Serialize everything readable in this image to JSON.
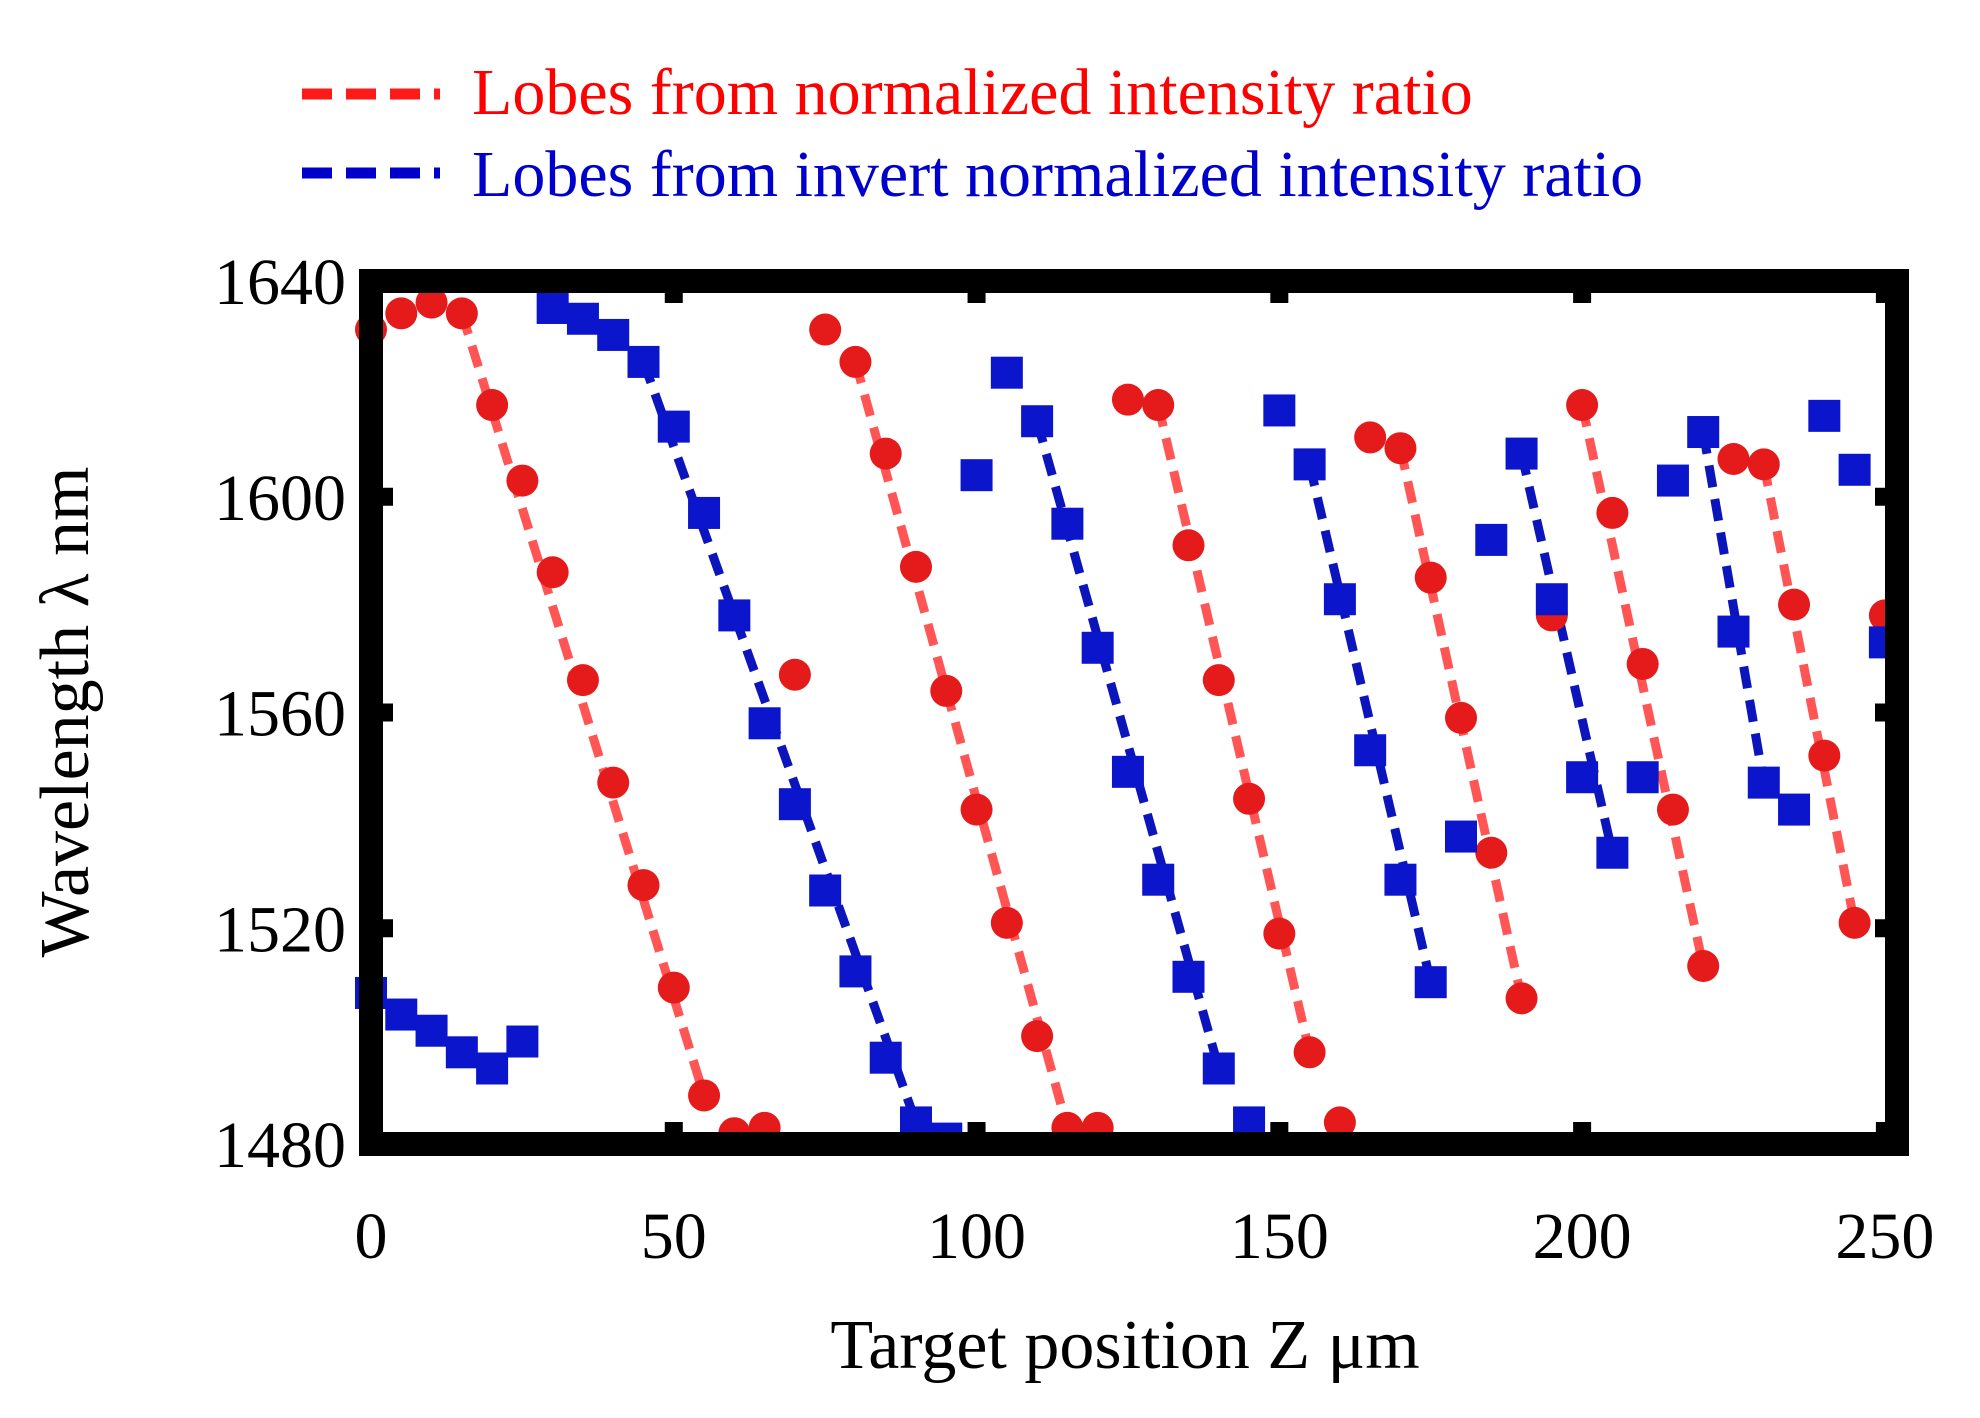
{
  "chart_data": {
    "type": "scatter",
    "xlabel": "Target position Z μm",
    "ylabel": "Wavelength λ nm",
    "xlim": [
      0,
      252
    ],
    "ylim": [
      1480,
      1640
    ],
    "xticks": [
      "0",
      "50",
      "100",
      "150",
      "200",
      "250"
    ],
    "yticks": [
      "1480",
      "1520",
      "1560",
      "1600",
      "1640"
    ],
    "legend": {
      "placement": "top",
      "entries": [
        {
          "label": "Lobes from normalized intensity ratio",
          "color": "#ff0000"
        },
        {
          "label": "Lobes from invert normalized intensity ratio",
          "color": "#0000cc"
        }
      ]
    },
    "series": [
      {
        "marker": "circle",
        "color": "#e51a1a",
        "points": [
          [
            0,
            1631
          ],
          [
            5,
            1634
          ],
          [
            10,
            1636
          ],
          [
            15,
            1634
          ],
          [
            20,
            1617
          ],
          [
            25,
            1603
          ],
          [
            30,
            1586
          ],
          [
            35,
            1566
          ],
          [
            40,
            1547
          ],
          [
            45,
            1528
          ],
          [
            50,
            1509
          ],
          [
            55,
            1489
          ],
          [
            60,
            1482
          ],
          [
            65,
            1483
          ],
          [
            70,
            1567
          ],
          [
            75,
            1631
          ],
          [
            80,
            1625
          ],
          [
            85,
            1608
          ],
          [
            90,
            1587
          ],
          [
            95,
            1564
          ],
          [
            100,
            1542
          ],
          [
            105,
            1521
          ],
          [
            110,
            1500
          ],
          [
            115,
            1483
          ],
          [
            120,
            1483
          ],
          [
            125,
            1618
          ],
          [
            130,
            1617
          ],
          [
            135,
            1591
          ],
          [
            140,
            1566
          ],
          [
            145,
            1544
          ],
          [
            150,
            1519
          ],
          [
            155,
            1497
          ],
          [
            160,
            1484
          ],
          [
            165,
            1611
          ],
          [
            170,
            1609
          ],
          [
            175,
            1585
          ],
          [
            180,
            1559
          ],
          [
            185,
            1534
          ],
          [
            190,
            1507
          ],
          [
            195,
            1578
          ],
          [
            200,
            1617
          ],
          [
            205,
            1597
          ],
          [
            210,
            1569
          ],
          [
            215,
            1542
          ],
          [
            220,
            1513
          ],
          [
            225,
            1607
          ],
          [
            230,
            1606
          ],
          [
            235,
            1580
          ],
          [
            240,
            1552
          ],
          [
            245,
            1521
          ],
          [
            250,
            1578
          ]
        ]
      },
      {
        "marker": "square",
        "color": "#0b15cc",
        "points": [
          [
            0,
            1508
          ],
          [
            5,
            1504
          ],
          [
            10,
            1501
          ],
          [
            15,
            1497
          ],
          [
            20,
            1494
          ],
          [
            25,
            1499
          ],
          [
            30,
            1635
          ],
          [
            35,
            1633
          ],
          [
            40,
            1630
          ],
          [
            45,
            1625
          ],
          [
            50,
            1613
          ],
          [
            55,
            1597
          ],
          [
            60,
            1578
          ],
          [
            65,
            1558
          ],
          [
            70,
            1543
          ],
          [
            75,
            1527
          ],
          [
            80,
            1512
          ],
          [
            85,
            1496
          ],
          [
            90,
            1484
          ],
          [
            95,
            1481
          ],
          [
            100,
            1604
          ],
          [
            105,
            1623
          ],
          [
            110,
            1614
          ],
          [
            115,
            1595
          ],
          [
            120,
            1572
          ],
          [
            125,
            1549
          ],
          [
            130,
            1529
          ],
          [
            135,
            1511
          ],
          [
            140,
            1494
          ],
          [
            145,
            1484
          ],
          [
            150,
            1616
          ],
          [
            155,
            1606
          ],
          [
            160,
            1581
          ],
          [
            165,
            1553
          ],
          [
            170,
            1529
          ],
          [
            175,
            1510
          ],
          [
            180,
            1537
          ],
          [
            185,
            1592
          ],
          [
            190,
            1608
          ],
          [
            195,
            1581
          ],
          [
            200,
            1548
          ],
          [
            205,
            1534
          ],
          [
            210,
            1548
          ],
          [
            215,
            1603
          ],
          [
            220,
            1612
          ],
          [
            225,
            1575
          ],
          [
            230,
            1547
          ],
          [
            235,
            1542
          ],
          [
            240,
            1615
          ],
          [
            245,
            1605
          ],
          [
            250,
            1573
          ]
        ]
      }
    ],
    "fit_lines": [
      {
        "color": "#ff5555",
        "style": "dashed",
        "from": [
          15,
          1634
        ],
        "to": [
          55,
          1489
        ]
      },
      {
        "color": "#ff5555",
        "style": "dashed",
        "from": [
          80,
          1625
        ],
        "to": [
          115,
          1483
        ]
      },
      {
        "color": "#ff5555",
        "style": "dashed",
        "from": [
          130,
          1617
        ],
        "to": [
          155,
          1497
        ]
      },
      {
        "color": "#ff5555",
        "style": "dashed",
        "from": [
          170,
          1609
        ],
        "to": [
          190,
          1507
        ]
      },
      {
        "color": "#ff5555",
        "style": "dashed",
        "from": [
          200,
          1617
        ],
        "to": [
          220,
          1513
        ]
      },
      {
        "color": "#ff5555",
        "style": "dashed",
        "from": [
          230,
          1606
        ],
        "to": [
          245,
          1521
        ]
      },
      {
        "color": "#0b15bb",
        "style": "dashed",
        "from": [
          45,
          1625
        ],
        "to": [
          90,
          1484
        ]
      },
      {
        "color": "#0b15bb",
        "style": "dashed",
        "from": [
          110,
          1614
        ],
        "to": [
          140,
          1494
        ]
      },
      {
        "color": "#0b15bb",
        "style": "dashed",
        "from": [
          155,
          1606
        ],
        "to": [
          175,
          1510
        ]
      },
      {
        "color": "#0b15bb",
        "style": "dashed",
        "from": [
          190,
          1608
        ],
        "to": [
          205,
          1534
        ]
      },
      {
        "color": "#0b15bb",
        "style": "dashed",
        "from": [
          220,
          1612
        ],
        "to": [
          230,
          1547
        ]
      }
    ]
  }
}
